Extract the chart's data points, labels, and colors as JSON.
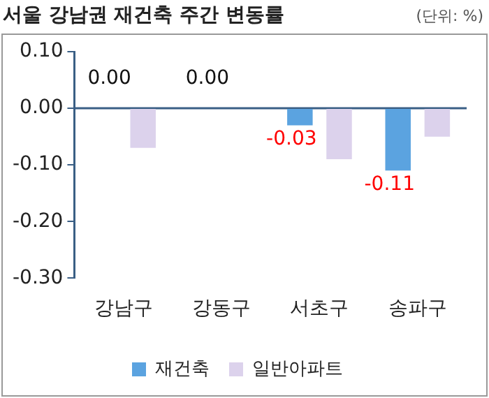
{
  "chart_data": {
    "type": "bar",
    "title": "서울 강남권 재건축 주간 변동률",
    "subtitle": "(단위: %)",
    "categories": [
      "강남구",
      "강동구",
      "서초구",
      "송파구"
    ],
    "series": [
      {
        "name": "재건축",
        "color": "#5ba3e0",
        "values": [
          0.0,
          0.0,
          -0.03,
          -0.11
        ],
        "value_labels": [
          "0.00",
          "0.00",
          "-0.03",
          "-0.11"
        ]
      },
      {
        "name": "일반아파트",
        "color": "#dcd2ec",
        "values": [
          -0.07,
          0.0,
          -0.09,
          -0.05
        ]
      }
    ],
    "ylim": [
      -0.3,
      0.1
    ],
    "yticks": [
      {
        "value": 0.1,
        "label": "0.10"
      },
      {
        "value": 0,
        "label": "0.00"
      },
      {
        "value": -0.1,
        "label": "-0.10"
      },
      {
        "value": -0.2,
        "label": "-0.20"
      },
      {
        "value": -0.3,
        "label": "-0.30"
      }
    ],
    "ref_lines": [
      {
        "axis": "y",
        "value": 0,
        "color": "#3a5f85"
      }
    ],
    "legend": "bottom"
  }
}
